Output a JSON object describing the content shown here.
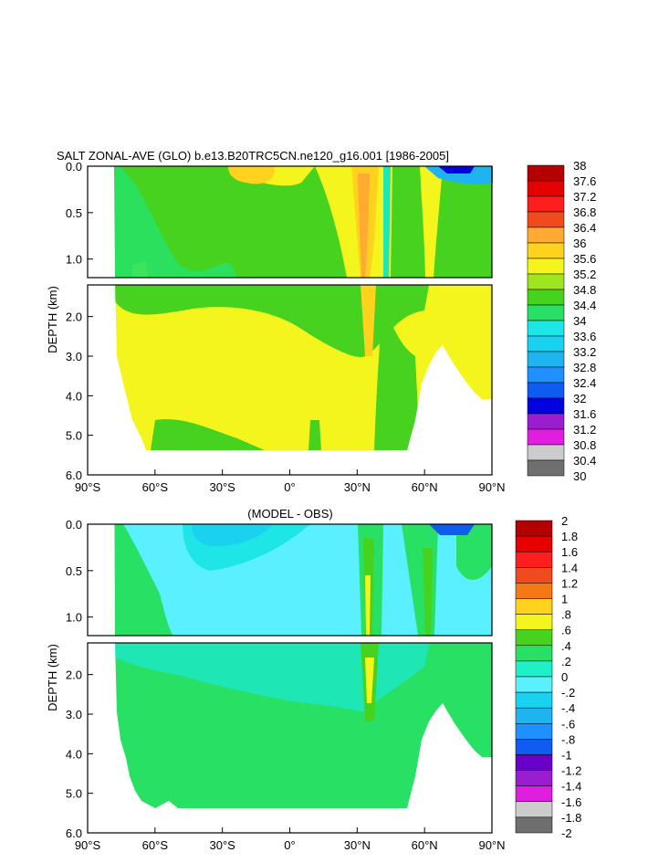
{
  "colors": {
    "land": "#ffffff",
    "frame": "#000000",
    "salt_scale": [
      "#6f6f6f",
      "#cccccc",
      "#e01ee0",
      "#9a1ecf",
      "#6a00c8",
      "#0000e0",
      "#0f5cf0",
      "#1e90ff",
      "#1eb4f0",
      "#19d2f0",
      "#1ee6e6",
      "#1ee6b4",
      "#28e164",
      "#46d21e",
      "#a0e61e",
      "#f5f51e",
      "#ffd21e",
      "#ffaa32",
      "#f57814",
      "#f04b1e",
      "#ff1e1e",
      "#e60000",
      "#b40000"
    ],
    "diff_scale": [
      "#6f6f6f",
      "#cccccc",
      "#e01ee0",
      "#9a1ecf",
      "#6a00c8",
      "#0000e0",
      "#0f5cf0",
      "#1e90ff",
      "#1eb4f0",
      "#19d2f0",
      "#5af0ff",
      "#1ef0c8",
      "#28e164",
      "#46d21e",
      "#f5f51e",
      "#ffd21e",
      "#ffaa32",
      "#f57814",
      "#f04b1e",
      "#ff1e1e",
      "#e60000",
      "#b40000"
    ]
  },
  "chart_data": [
    {
      "type": "heatmap",
      "title": "SALT ZONAL-AVE (GLO) b.e13.B20TRC5CN.ne120_g16.001 [1986-2005]",
      "ylabel": "DEPTH (km)",
      "xlabel": "",
      "xlim": [
        -90,
        90
      ],
      "ylim": [
        6.0,
        0.0
      ],
      "depth_break_km": 1.2,
      "x_ticks": [
        "90°S",
        "60°S",
        "30°S",
        "0°",
        "30°N",
        "60°N",
        "90°N"
      ],
      "y_ticks_upper": [
        "0.0",
        "0.5",
        "1.0"
      ],
      "y_ticks_lower": [
        "2.0",
        "3.0",
        "4.0",
        "5.0",
        "6.0"
      ],
      "colorbar_levels": [
        "38",
        "37.6",
        "37.2",
        "36.8",
        "36.4",
        "36",
        "35.6",
        "35.2",
        "34.8",
        "34.4",
        "34",
        "33.6",
        "33.2",
        "32.8",
        "32.4",
        "32",
        "31.6",
        "31.2",
        "30.8",
        "30.4",
        "30"
      ],
      "regions": [
        {
          "label": "34.4-34.8",
          "color_index": 13
        },
        {
          "label": "34.8-35.2",
          "color_index": 15
        },
        {
          "label": "35.2-35.6",
          "color_index": 16
        },
        {
          "label": "35.6-36.4",
          "color_index": 17
        }
      ]
    },
    {
      "type": "heatmap",
      "title": "(MODEL - OBS)",
      "ylabel": "DEPTH (km)",
      "xlabel": "",
      "xlim": [
        -90,
        90
      ],
      "ylim": [
        6.0,
        0.0
      ],
      "depth_break_km": 1.2,
      "x_ticks": [
        "90°S",
        "60°S",
        "30°S",
        "0°",
        "30°N",
        "60°N",
        "90°N"
      ],
      "y_ticks_upper": [
        "0.0",
        "0.5",
        "1.0"
      ],
      "y_ticks_lower": [
        "2.0",
        "3.0",
        "4.0",
        "5.0",
        "6.0"
      ],
      "colorbar_levels": [
        "2",
        "1.8",
        "1.6",
        "1.4",
        "1.2",
        "1",
        ".8",
        ".6",
        ".4",
        ".2",
        "0",
        "-.2",
        "-.4",
        "-.6",
        "-.8",
        "-1",
        "-1.2",
        "-1.4",
        "-1.6",
        "-1.8",
        "-2"
      ],
      "regions": [
        {
          "label": "0-0.2",
          "color_index": 12
        },
        {
          "label": "-0.2-0",
          "color_index": 11
        },
        {
          "label": "-0.4--0.2",
          "color_index": 10
        },
        {
          "label": "0.2-0.4",
          "color_index": 13
        },
        {
          "label": "0.4-0.6",
          "color_index": 14
        }
      ]
    }
  ]
}
